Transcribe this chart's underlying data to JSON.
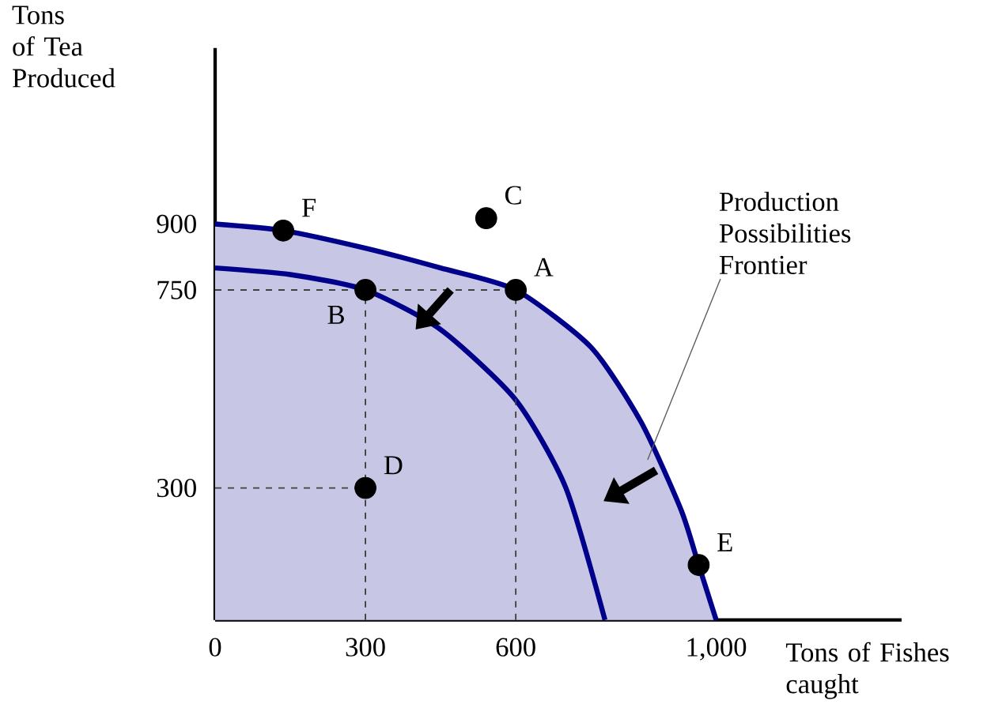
{
  "chart_data": {
    "type": "line",
    "xlabel": "Tons of Fishes caught",
    "ylabel": "Tons of Tea Produced",
    "xlim": [
      0,
      1370
    ],
    "ylim": [
      0,
      1300
    ],
    "xticks": [
      0,
      300,
      600,
      {
        "value": 1000,
        "label": "1,000"
      }
    ],
    "yticks": [
      300,
      750,
      900
    ],
    "grid": false,
    "series": [
      {
        "type": "area",
        "color": "#00008b",
        "x": [
          0,
          136,
          300,
          450,
          600,
          750,
          850,
          930,
          965,
          1000
        ],
        "values": [
          900,
          885,
          845,
          800,
          750,
          620,
          450,
          250,
          125,
          0
        ]
      },
      {
        "color": "#00008b",
        "x": [
          0,
          150,
          300,
          450,
          600,
          700,
          778
        ],
        "values": [
          800,
          785,
          750,
          660,
          500,
          300,
          0
        ]
      },
      {
        "color": "#404040",
        "line_style": "dashed",
        "x": [
          0,
          600
        ],
        "values": [
          750,
          750
        ]
      },
      {
        "color": "#404040",
        "line_style": "dashed",
        "x": [
          600,
          600
        ],
        "values": [
          0,
          750
        ]
      },
      {
        "color": "#404040",
        "line_style": "dashed",
        "x": [
          300,
          300
        ],
        "values": [
          0,
          750
        ]
      },
      {
        "color": "#404040",
        "line_style": "dashed",
        "x": [
          0,
          300
        ],
        "values": [
          300,
          300
        ]
      },
      {
        "type": "scatter",
        "color": "#000000",
        "marker": "circle",
        "x": [
          600,
          300,
          541,
          300,
          965,
          136
        ],
        "values": [
          750,
          750,
          913,
          300,
          125,
          885
        ]
      }
    ],
    "annotations": [
      {
        "text": "A",
        "x": 600,
        "y": 750
      },
      {
        "text": "B",
        "x": 300,
        "y": 750
      },
      {
        "text": "C",
        "x": 541,
        "y": 913
      },
      {
        "text": "D",
        "x": 300,
        "y": 300
      },
      {
        "text": "E",
        "x": 965,
        "y": 125
      },
      {
        "text": "F",
        "x": 136,
        "y": 885
      },
      "Production Possibilities Frontier"
    ]
  }
}
